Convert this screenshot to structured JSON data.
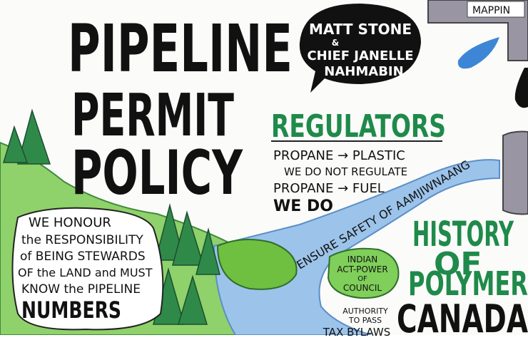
{
  "title": {
    "lines": [
      "PIPELINE",
      "PERMIT",
      "POLICY"
    ]
  },
  "speakers": {
    "lines": [
      "MATT STONE",
      "&",
      "CHIEF JANELLE",
      "NAHMABIN"
    ]
  },
  "pipe_label": "MAPPIN",
  "regulators": {
    "heading": "REGULATORS",
    "lines": [
      "PROPANE → PLASTIC",
      "WE DO NOT REGULATE",
      "PROPANE → FUEL",
      "WE DO"
    ]
  },
  "river_label": "ENSURE SAFETY OF AAMJIWNAANG",
  "stewardship": {
    "lines": [
      "WE HONOUR",
      "the RESPONSIBILITY",
      "of BEING STEWARDS",
      "OF the LAND and MUST",
      "KNOW the PIPELINE",
      "NUMBERS"
    ]
  },
  "council": {
    "lines": [
      "INDIAN",
      "ACT-POWER",
      "OF",
      "COUNCIL"
    ]
  },
  "authority": {
    "lines": [
      "AUTHORITY",
      "TO PASS",
      "TAX BYLAWS"
    ]
  },
  "history": {
    "lines": [
      "HISTORY",
      "OF",
      "POLYMER",
      "CANADA"
    ]
  }
}
